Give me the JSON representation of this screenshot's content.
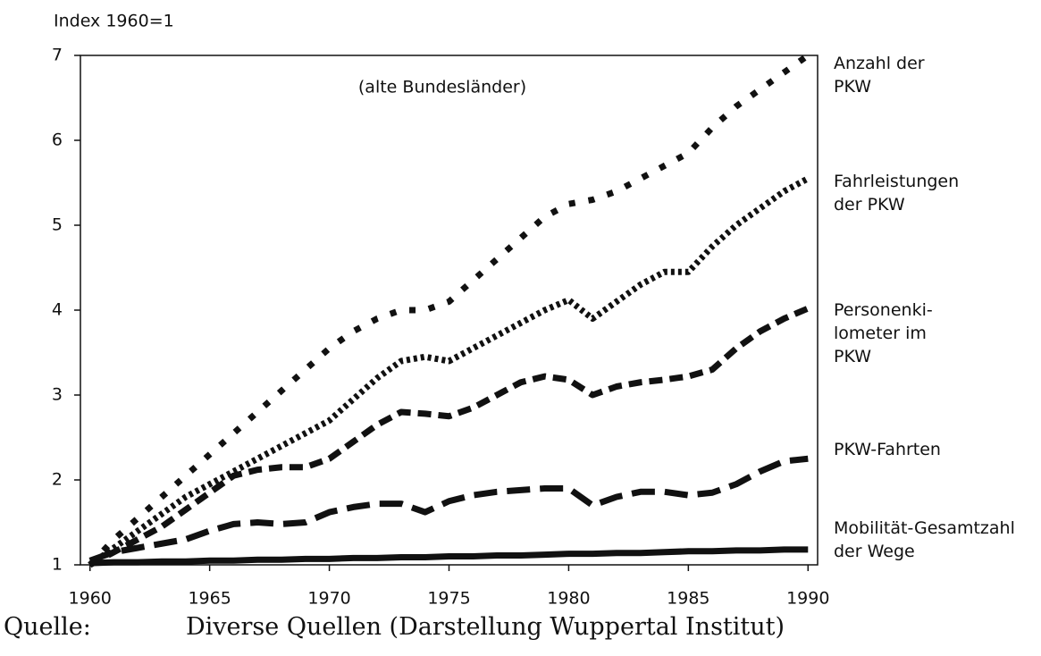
{
  "chart_data": {
    "type": "line",
    "y_axis_label": "Index 1960=1",
    "annotation": "(alte Bundesländer)",
    "x": [
      1960,
      1961,
      1962,
      1963,
      1964,
      1965,
      1966,
      1967,
      1968,
      1969,
      1970,
      1971,
      1972,
      1973,
      1974,
      1975,
      1976,
      1977,
      1978,
      1979,
      1980,
      1981,
      1982,
      1983,
      1984,
      1985,
      1986,
      1987,
      1988,
      1989,
      1990
    ],
    "xlim": [
      1959.6,
      1990.4
    ],
    "xticks": [
      1960,
      1965,
      1970,
      1975,
      1980,
      1985,
      1990
    ],
    "ylim": [
      1,
      7
    ],
    "yticks": [
      1,
      2,
      3,
      4,
      5,
      6,
      7
    ],
    "series": [
      {
        "name": "Anzahl der\nPKW",
        "color": "#111111",
        "line_style": "dotted-wide",
        "values": [
          1,
          1.3,
          1.55,
          1.8,
          2.05,
          2.3,
          2.55,
          2.8,
          3.05,
          3.3,
          3.55,
          3.75,
          3.9,
          4.0,
          4.0,
          4.1,
          4.35,
          4.6,
          4.85,
          5.1,
          5.25,
          5.3,
          5.4,
          5.55,
          5.7,
          5.85,
          6.15,
          6.4,
          6.6,
          6.8,
          7.0
        ]
      },
      {
        "name": "Fahrleistungen\nder PKW",
        "color": "#111111",
        "line_style": "dotted-dense",
        "values": [
          1,
          1.2,
          1.4,
          1.6,
          1.8,
          1.95,
          2.1,
          2.25,
          2.4,
          2.55,
          2.7,
          2.95,
          3.2,
          3.4,
          3.45,
          3.4,
          3.55,
          3.7,
          3.85,
          4.0,
          4.12,
          3.9,
          4.1,
          4.3,
          4.45,
          4.45,
          4.75,
          5.0,
          5.2,
          5.4,
          5.55
        ]
      },
      {
        "name": "Personenki-\nlometer im\nPKW",
        "color": "#111111",
        "line_style": "dashed",
        "values": [
          1,
          1.15,
          1.3,
          1.45,
          1.65,
          1.85,
          2.05,
          2.12,
          2.15,
          2.15,
          2.25,
          2.45,
          2.65,
          2.8,
          2.78,
          2.75,
          2.85,
          3.0,
          3.15,
          3.22,
          3.18,
          3.0,
          3.1,
          3.15,
          3.18,
          3.22,
          3.3,
          3.55,
          3.75,
          3.9,
          4.02
        ]
      },
      {
        "name": "PKW-Fahrten",
        "color": "#111111",
        "line_style": "long-dashed",
        "values": [
          1.05,
          1.15,
          1.2,
          1.25,
          1.3,
          1.4,
          1.48,
          1.5,
          1.48,
          1.5,
          1.62,
          1.68,
          1.72,
          1.72,
          1.62,
          1.75,
          1.82,
          1.86,
          1.88,
          1.9,
          1.9,
          1.7,
          1.8,
          1.86,
          1.86,
          1.82,
          1.85,
          1.95,
          2.1,
          2.22,
          2.25
        ]
      },
      {
        "name": "Mobilität-Gesamtzahl\nder Wege",
        "color": "#111111",
        "line_style": "solid",
        "values": [
          1.02,
          1.03,
          1.03,
          1.04,
          1.04,
          1.05,
          1.05,
          1.06,
          1.06,
          1.07,
          1.07,
          1.08,
          1.08,
          1.09,
          1.09,
          1.1,
          1.1,
          1.11,
          1.11,
          1.12,
          1.13,
          1.13,
          1.14,
          1.14,
          1.15,
          1.16,
          1.16,
          1.17,
          1.17,
          1.18,
          1.18
        ]
      }
    ],
    "source_label": "Quelle:",
    "source": "Diverse Quellen (Darstellung Wuppertal Institut)"
  }
}
